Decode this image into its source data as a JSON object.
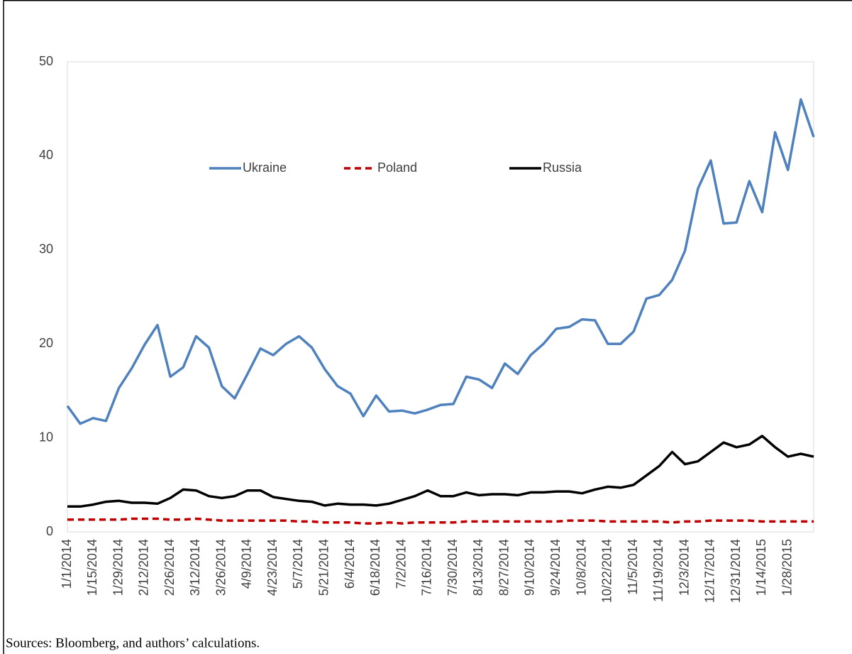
{
  "chart_data": {
    "type": "line",
    "categories": [
      "1/1/2014",
      null,
      "1/15/2014",
      null,
      "1/29/2014",
      null,
      "2/12/2014",
      null,
      "2/26/2014",
      null,
      "3/12/2014",
      null,
      "3/26/2014",
      null,
      "4/9/2014",
      null,
      "4/23/2014",
      null,
      "5/7/2014",
      null,
      "5/21/2014",
      null,
      "6/4/2014",
      null,
      "6/18/2014",
      null,
      "7/2/2014",
      null,
      "7/16/2014",
      null,
      "7/30/2014",
      null,
      "8/13/2014",
      null,
      "8/27/2014",
      null,
      "9/10/2014",
      null,
      "9/24/2014",
      null,
      "10/8/2014",
      null,
      "10/22/2014",
      null,
      "11/5/2014",
      null,
      "11/19/2014",
      null,
      "12/3/2014",
      null,
      "12/17/2014",
      null,
      "12/31/2014",
      null,
      "1/14/2015",
      null,
      "1/28/2015",
      null,
      null
    ],
    "series": [
      {
        "name": "Ukraine",
        "color": "#4f81bd",
        "dash": false,
        "values": [
          13.4,
          11.5,
          12.1,
          11.8,
          15.3,
          17.4,
          19.9,
          22.0,
          16.5,
          17.5,
          20.8,
          19.6,
          15.5,
          14.2,
          16.8,
          19.5,
          18.8,
          20.0,
          20.8,
          19.6,
          17.3,
          15.5,
          14.7,
          12.3,
          14.5,
          12.8,
          12.9,
          12.6,
          13.0,
          13.5,
          13.6,
          16.5,
          16.2,
          15.3,
          17.9,
          16.8,
          18.8,
          20.0,
          21.6,
          21.8,
          22.6,
          22.5,
          20.0,
          20.0,
          21.3,
          24.8,
          25.2,
          26.8,
          29.9,
          36.5,
          39.5,
          32.8,
          32.9,
          37.3,
          34.0,
          42.5,
          38.5,
          46.0,
          42.0
        ]
      },
      {
        "name": "Poland",
        "color": "#c00000",
        "dash": true,
        "values": [
          1.3,
          1.3,
          1.3,
          1.3,
          1.3,
          1.4,
          1.4,
          1.4,
          1.3,
          1.3,
          1.4,
          1.3,
          1.2,
          1.2,
          1.2,
          1.2,
          1.2,
          1.2,
          1.1,
          1.1,
          1.0,
          1.0,
          1.0,
          0.9,
          0.9,
          1.0,
          0.9,
          1.0,
          1.0,
          1.0,
          1.0,
          1.1,
          1.1,
          1.1,
          1.1,
          1.1,
          1.1,
          1.1,
          1.1,
          1.2,
          1.2,
          1.2,
          1.1,
          1.1,
          1.1,
          1.1,
          1.1,
          1.0,
          1.1,
          1.1,
          1.2,
          1.2,
          1.2,
          1.2,
          1.1,
          1.1,
          1.1,
          1.1,
          1.1
        ]
      },
      {
        "name": "Russia",
        "color": "#000000",
        "dash": false,
        "values": [
          2.7,
          2.7,
          2.9,
          3.2,
          3.3,
          3.1,
          3.1,
          3.0,
          3.6,
          4.5,
          4.4,
          3.8,
          3.6,
          3.8,
          4.4,
          4.4,
          3.7,
          3.5,
          3.3,
          3.2,
          2.8,
          3.0,
          2.9,
          2.9,
          2.8,
          3.0,
          3.4,
          3.8,
          4.4,
          3.8,
          3.8,
          4.2,
          3.9,
          4.0,
          4.0,
          3.9,
          4.2,
          4.2,
          4.3,
          4.3,
          4.1,
          4.5,
          4.8,
          4.7,
          5.0,
          6.0,
          7.0,
          8.5,
          7.2,
          7.5,
          8.5,
          9.5,
          9.0,
          9.3,
          10.2,
          9.0,
          8.0,
          8.3,
          8.0
        ]
      }
    ],
    "ylim": [
      0,
      50
    ],
    "yticks": [
      0,
      10,
      20,
      30,
      40,
      50
    ],
    "grid": false,
    "legend": "top",
    "source": "Sources: Bloomberg, and authors’ calculations."
  }
}
